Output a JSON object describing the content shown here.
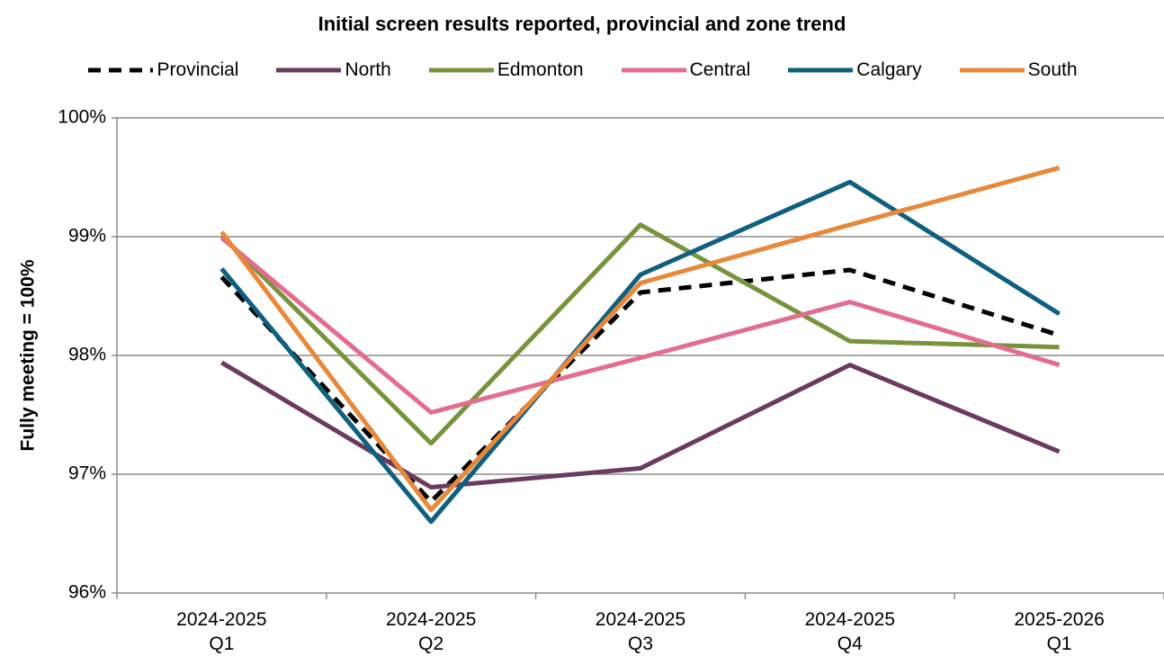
{
  "chart_data": {
    "type": "line",
    "title": "Initial screen results reported, provincial and zone trend",
    "y_label": "Fully meeting = 100%",
    "categories": [
      "2024-2025 Q1",
      "2024-2025 Q2",
      "2024-2025 Q3",
      "2024-2025 Q4",
      "2025-2026 Q1"
    ],
    "ylim": [
      96,
      100
    ],
    "yticks": [
      {
        "value": 96,
        "label": "96%"
      },
      {
        "value": 97,
        "label": "97%"
      },
      {
        "value": 98,
        "label": "98%"
      },
      {
        "value": 99,
        "label": "99%"
      },
      {
        "value": 100,
        "label": "100%"
      }
    ],
    "grid": true,
    "legend": "top",
    "series": [
      {
        "name": "Provincial",
        "color": "#000000",
        "style": "dashed",
        "values": [
          98.66,
          96.77,
          98.53,
          98.72,
          98.17
        ]
      },
      {
        "name": "North",
        "color": "#6b3a5e",
        "style": "solid",
        "values": [
          97.94,
          96.89,
          97.05,
          97.92,
          97.19
        ]
      },
      {
        "name": "Edmonton",
        "color": "#77933c",
        "style": "solid",
        "values": [
          99.01,
          97.26,
          99.1,
          98.12,
          98.07
        ]
      },
      {
        "name": "Central",
        "color": "#e46c8f",
        "style": "solid",
        "values": [
          98.99,
          97.52,
          97.98,
          98.45,
          97.92
        ]
      },
      {
        "name": "Calgary",
        "color": "#0f5f7f",
        "style": "solid",
        "values": [
          98.73,
          96.6,
          98.68,
          99.46,
          98.35
        ]
      },
      {
        "name": "South",
        "color": "#e8883a",
        "style": "solid",
        "values": [
          99.04,
          96.7,
          98.61,
          99.1,
          99.58
        ]
      }
    ]
  }
}
